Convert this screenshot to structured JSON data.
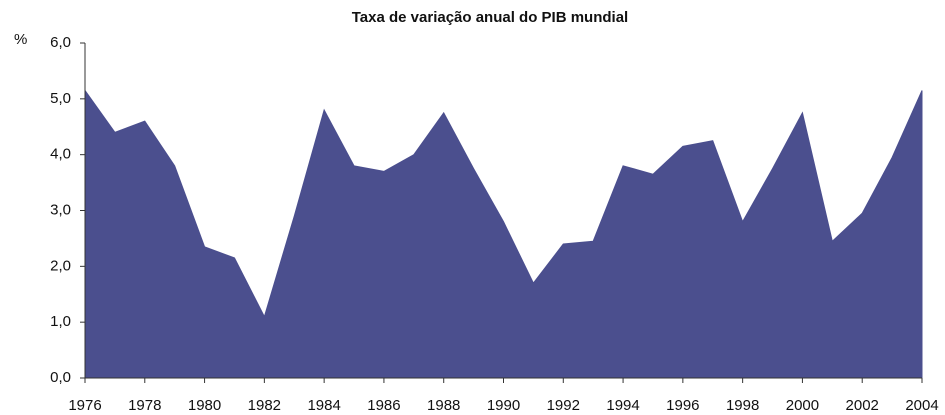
{
  "chart_data": {
    "type": "area",
    "title": "Taxa de variação anual do PIB mundial",
    "ylabel": "%",
    "x": [
      1976,
      1977,
      1978,
      1979,
      1980,
      1981,
      1982,
      1983,
      1984,
      1985,
      1986,
      1987,
      1988,
      1989,
      1990,
      1991,
      1992,
      1993,
      1994,
      1995,
      1996,
      1997,
      1998,
      1999,
      2000,
      2001,
      2002,
      2003,
      2004
    ],
    "values": [
      5.15,
      4.4,
      4.6,
      3.8,
      2.35,
      2.15,
      1.1,
      2.9,
      4.8,
      3.8,
      3.7,
      4.0,
      4.75,
      3.75,
      2.8,
      1.7,
      2.4,
      2.45,
      3.8,
      3.65,
      4.15,
      4.25,
      2.8,
      3.75,
      4.75,
      2.45,
      2.95,
      3.95,
      5.15
    ],
    "color": "#4b4f8e",
    "xlim": [
      1976,
      2004
    ],
    "xticks": [
      1976,
      1978,
      1980,
      1982,
      1984,
      1986,
      1988,
      1990,
      1992,
      1994,
      1996,
      1998,
      2000,
      2002,
      2004
    ],
    "ylim": [
      0,
      6
    ],
    "yticks": [
      {
        "value": 0,
        "label": "0,0"
      },
      {
        "value": 1,
        "label": "1,0"
      },
      {
        "value": 2,
        "label": "2,0"
      },
      {
        "value": 3,
        "label": "3,0"
      },
      {
        "value": 4,
        "label": "4,0"
      },
      {
        "value": 5,
        "label": "5,0"
      },
      {
        "value": 6,
        "label": "6,0"
      }
    ],
    "grid": false
  }
}
